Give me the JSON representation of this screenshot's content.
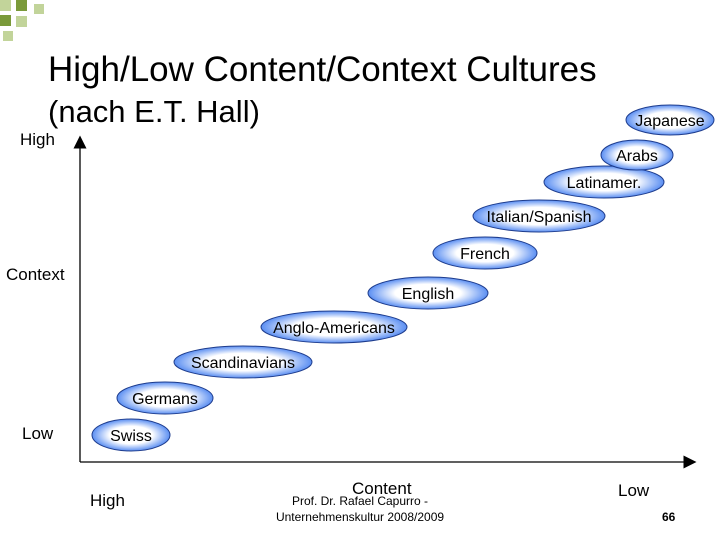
{
  "title": {
    "line1": "High/Low Content/Context Cultures",
    "line2": "(nach E.T. Hall)"
  },
  "axes": {
    "y_title": "Context",
    "y_high": "High",
    "y_low": "Low",
    "x_title": "Content",
    "x_high": "High",
    "x_low": "Low"
  },
  "cultures": [
    "Swiss",
    "Germans",
    "Scandinavians",
    "Anglo-Americans",
    "English",
    "French",
    "Italian/Spanish",
    "Latinamer.",
    "Arabs",
    "Japanese"
  ],
  "footer": {
    "author": "Prof. Dr. Rafael Capurro -",
    "course": "Unternehmenskultur 2008/2009",
    "page": "66"
  },
  "colors": {
    "ellipse_fill_center": "#ffffff",
    "ellipse_fill_edge": "#5a8ef2",
    "ellipse_stroke": "#1e3c8c",
    "square_dark": "#7a9a3a",
    "square_light": "#c2d49a"
  }
}
